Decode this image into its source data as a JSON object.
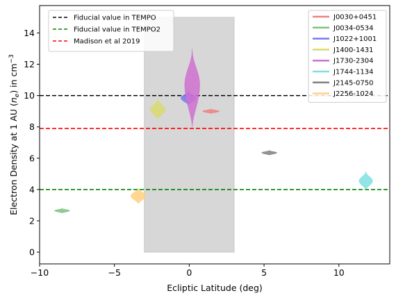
{
  "chart_data": {
    "type": "violin",
    "xlabel": "Ecliptic Latitude (deg)",
    "ylabel_prefix": "Electron Density at 1 AU (",
    "ylabel_symbol": "n",
    "ylabel_subscript": "e",
    "ylabel_mid": ") in cm",
    "ylabel_superscript": "−3",
    "xlim": [
      -10.0,
      13.4
    ],
    "ylim": [
      -0.75,
      15.75
    ],
    "xticks": [
      -10,
      -5,
      0,
      5,
      10
    ],
    "xtick_labels": [
      "−10",
      "−5",
      "0",
      "5",
      "10"
    ],
    "yticks": [
      0,
      2,
      4,
      6,
      8,
      10,
      12,
      14
    ],
    "ytick_labels": [
      "0",
      "2",
      "4",
      "6",
      "8",
      "10",
      "12",
      "14"
    ],
    "grid": false,
    "shaded_region": {
      "x": [
        -3,
        3
      ],
      "y": [
        0,
        15
      ],
      "color": "#d5d5d5"
    },
    "hlines": [
      {
        "name": "Fiducial value in TEMPO",
        "y": 10.0,
        "color": "#000000",
        "style": "dashed"
      },
      {
        "name": "Fiducial value in TEMPO2",
        "y": 4.0,
        "color": "#008000",
        "style": "dashed"
      },
      {
        "name": "Madison et al 2019",
        "y": 7.9,
        "color": "#ff0000",
        "style": "dashed"
      }
    ],
    "series": [
      {
        "name": "J0030+0451",
        "color": "#f08080",
        "x": 1.45,
        "y": 9.0,
        "y_min": 8.85,
        "y_max": 9.15,
        "half_width": 0.55
      },
      {
        "name": "J0034-0534",
        "color": "#80c080",
        "x": -8.5,
        "y": 2.65,
        "y_min": 2.5,
        "y_max": 2.8,
        "half_width": 0.5
      },
      {
        "name": "J1022+1001",
        "color": "#7777ee",
        "x": -0.05,
        "y": 9.85,
        "y_min": 9.4,
        "y_max": 10.3,
        "half_width": 0.5
      },
      {
        "name": "J1400-1431",
        "color": "#d9d970",
        "x": -2.1,
        "y": 9.1,
        "y_min": 8.5,
        "y_max": 9.8,
        "half_width": 0.5
      },
      {
        "name": "J1730-2304",
        "color": "#d070d0",
        "x": 0.2,
        "y": 10.7,
        "y_min": 8.0,
        "y_max": 13.0,
        "half_width": 0.5
      },
      {
        "name": "J1744-1134",
        "color": "#80e0e0",
        "x": 11.8,
        "y": 4.55,
        "y_min": 4.0,
        "y_max": 5.15,
        "half_width": 0.45
      },
      {
        "name": "J2145-0750",
        "color": "#808080",
        "x": 5.35,
        "y": 6.35,
        "y_min": 6.2,
        "y_max": 6.5,
        "half_width": 0.5
      },
      {
        "name": "J2256-1024",
        "color": "#ffd080",
        "x": -3.4,
        "y": 3.6,
        "y_min": 3.1,
        "y_max": 4.1,
        "half_width": 0.5
      }
    ],
    "legend_left_placement": "upper-left",
    "legend_right_placement": "upper-right"
  }
}
